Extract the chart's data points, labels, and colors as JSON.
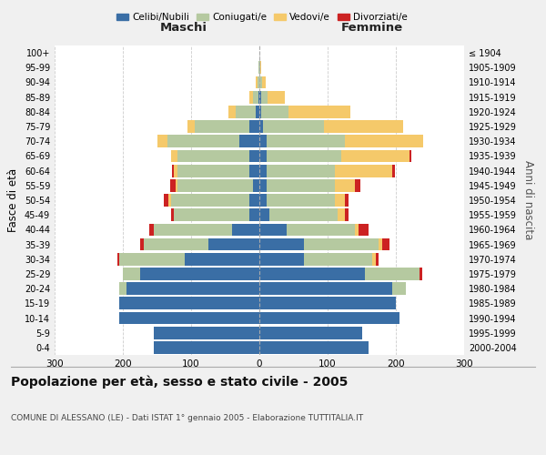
{
  "age_groups": [
    "0-4",
    "5-9",
    "10-14",
    "15-19",
    "20-24",
    "25-29",
    "30-34",
    "35-39",
    "40-44",
    "45-49",
    "50-54",
    "55-59",
    "60-64",
    "65-69",
    "70-74",
    "75-79",
    "80-84",
    "85-89",
    "90-94",
    "95-99",
    "100+"
  ],
  "birth_years": [
    "2000-2004",
    "1995-1999",
    "1990-1994",
    "1985-1989",
    "1980-1984",
    "1975-1979",
    "1970-1974",
    "1965-1969",
    "1960-1964",
    "1955-1959",
    "1950-1954",
    "1945-1949",
    "1940-1944",
    "1935-1939",
    "1930-1934",
    "1925-1929",
    "1920-1924",
    "1915-1919",
    "1910-1914",
    "1905-1909",
    "≤ 1904"
  ],
  "colors": {
    "celibe": "#3a6ea5",
    "coniugato": "#b5c9a0",
    "vedovo": "#f5c96a",
    "divorziato": "#cc2222"
  },
  "maschi": {
    "celibe": [
      155,
      155,
      205,
      205,
      195,
      175,
      110,
      75,
      40,
      15,
      15,
      10,
      15,
      15,
      30,
      15,
      5,
      2,
      0,
      0,
      0
    ],
    "coniugato": [
      0,
      0,
      0,
      0,
      10,
      25,
      95,
      95,
      115,
      110,
      115,
      110,
      105,
      105,
      105,
      80,
      30,
      8,
      3,
      1,
      0
    ],
    "vedovo": [
      0,
      0,
      0,
      0,
      0,
      0,
      0,
      0,
      0,
      0,
      3,
      3,
      5,
      10,
      15,
      10,
      10,
      5,
      2,
      0,
      0
    ],
    "divorziato": [
      0,
      0,
      0,
      0,
      0,
      0,
      3,
      5,
      7,
      5,
      7,
      8,
      3,
      0,
      0,
      0,
      0,
      0,
      0,
      0,
      0
    ]
  },
  "femmine": {
    "nubile": [
      160,
      150,
      205,
      200,
      195,
      155,
      65,
      65,
      40,
      15,
      10,
      10,
      10,
      10,
      10,
      5,
      3,
      2,
      0,
      0,
      0
    ],
    "coniugata": [
      0,
      0,
      0,
      0,
      20,
      80,
      100,
      110,
      100,
      100,
      100,
      100,
      100,
      110,
      115,
      90,
      40,
      10,
      4,
      1,
      0
    ],
    "vedova": [
      0,
      0,
      0,
      0,
      0,
      0,
      5,
      5,
      5,
      10,
      15,
      30,
      85,
      100,
      115,
      115,
      90,
      25,
      5,
      2,
      0
    ],
    "divorziata": [
      0,
      0,
      0,
      0,
      0,
      3,
      5,
      10,
      15,
      5,
      5,
      8,
      3,
      3,
      0,
      0,
      0,
      0,
      0,
      0,
      0
    ]
  },
  "title": "Popolazione per età, sesso e stato civile - 2005",
  "subtitle": "COMUNE DI ALESSANO (LE) - Dati ISTAT 1° gennaio 2005 - Elaborazione TUTTITALIA.IT",
  "xlabel_left": "Maschi",
  "xlabel_right": "Femmine",
  "ylabel_left": "Fasce di età",
  "ylabel_right": "Anni di nascita",
  "xlim": 300,
  "legend_labels": [
    "Celibi/Nubili",
    "Coniugati/e",
    "Vedovi/e",
    "Divorziati/e"
  ],
  "bg_color": "#f0f0f0",
  "plot_bg": "#ffffff",
  "grid_color": "#cccccc"
}
